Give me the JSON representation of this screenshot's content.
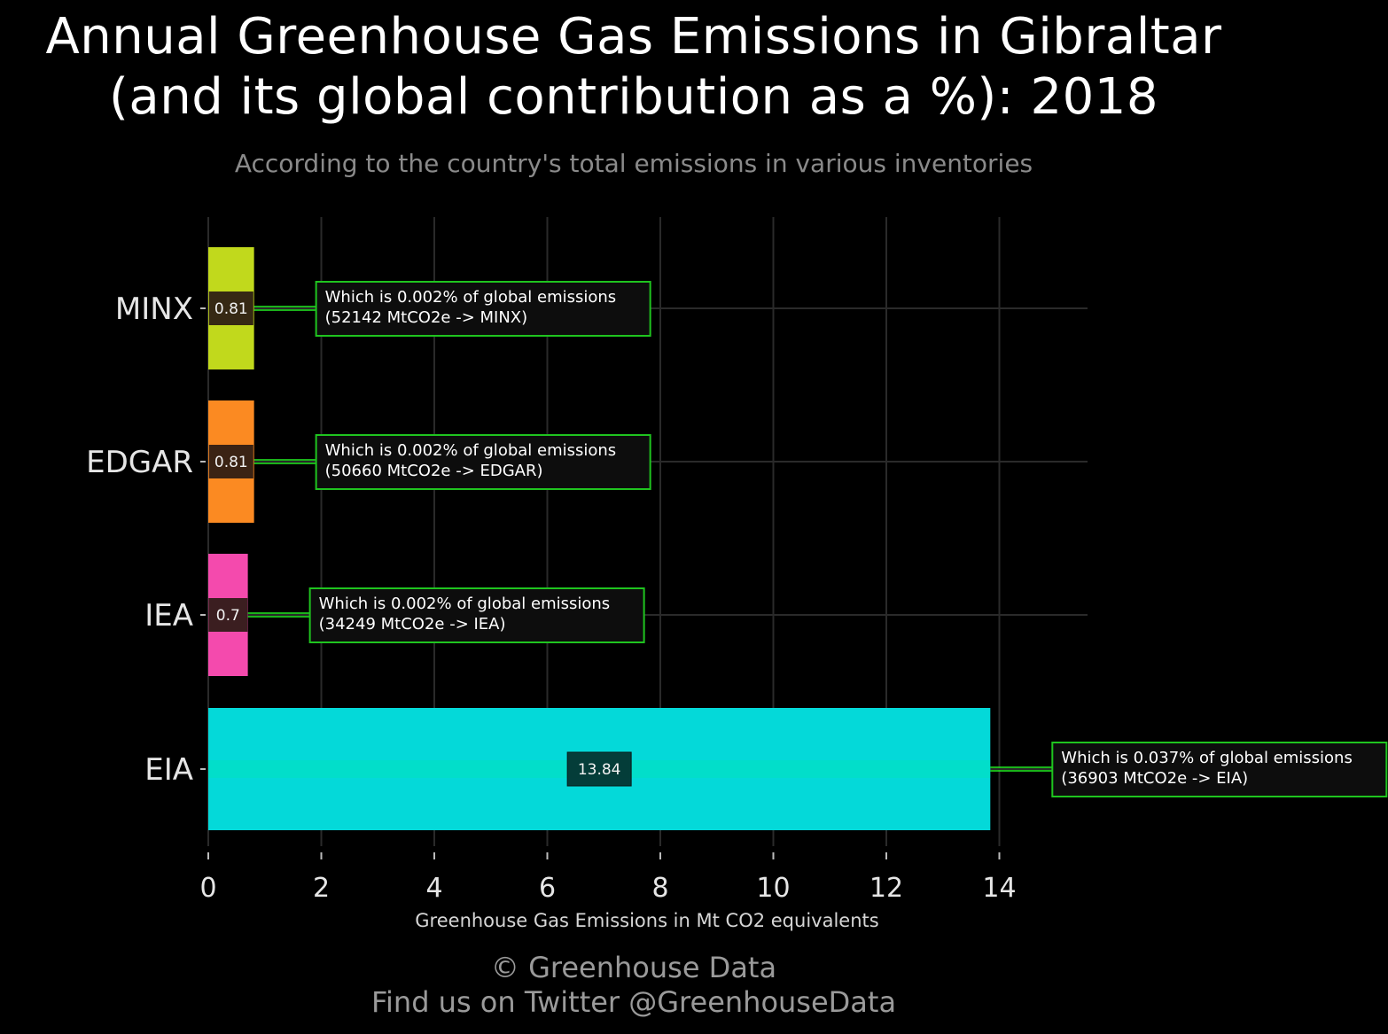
{
  "title_line1": "Annual Greenhouse Gas Emissions in Gibraltar",
  "title_line2": "(and its global contribution as a %): 2018",
  "subtitle": "According to the country's total emissions in various inventories",
  "caption_line1": "© Greenhouse Data",
  "caption_line2": "Find us on Twitter @GreenhouseData",
  "colors": {
    "background": "#000000",
    "grid": "#2a2a2a",
    "annotation_border": "#1fc41f",
    "annotation_fill": "#0d0d0d",
    "connector": "#22ee22"
  },
  "chart_data": {
    "type": "bar",
    "orientation": "horizontal",
    "categories": [
      "MINX",
      "EDGAR",
      "IEA",
      "EIA"
    ],
    "values": [
      0.81,
      0.81,
      0.7,
      13.84
    ],
    "value_labels": [
      "0.81",
      "0.81",
      "0.7",
      "13.84"
    ],
    "bar_colors": [
      "#c1d91c",
      "#fb8a22",
      "#f44aad",
      "#04d9d9"
    ],
    "annotations": [
      [
        "Which is 0.002% of global emissions",
        "(52142 MtCO2e -> MINX)"
      ],
      [
        "Which is 0.002% of global emissions",
        "(50660 MtCO2e -> EDGAR)"
      ],
      [
        "Which is 0.002% of global emissions",
        "(34249 MtCO2e -> IEA)"
      ],
      [
        "Which is 0.037% of global emissions",
        "(36903 MtCO2e -> EIA)"
      ]
    ],
    "xlabel": "Greenhouse Gas Emissions in Mt CO2 equivalents",
    "ylabel": "",
    "xticks": [
      0,
      2,
      4,
      6,
      8,
      10,
      12,
      14
    ],
    "xlim": [
      0,
      15.5
    ],
    "grid": true,
    "legend": "none"
  }
}
